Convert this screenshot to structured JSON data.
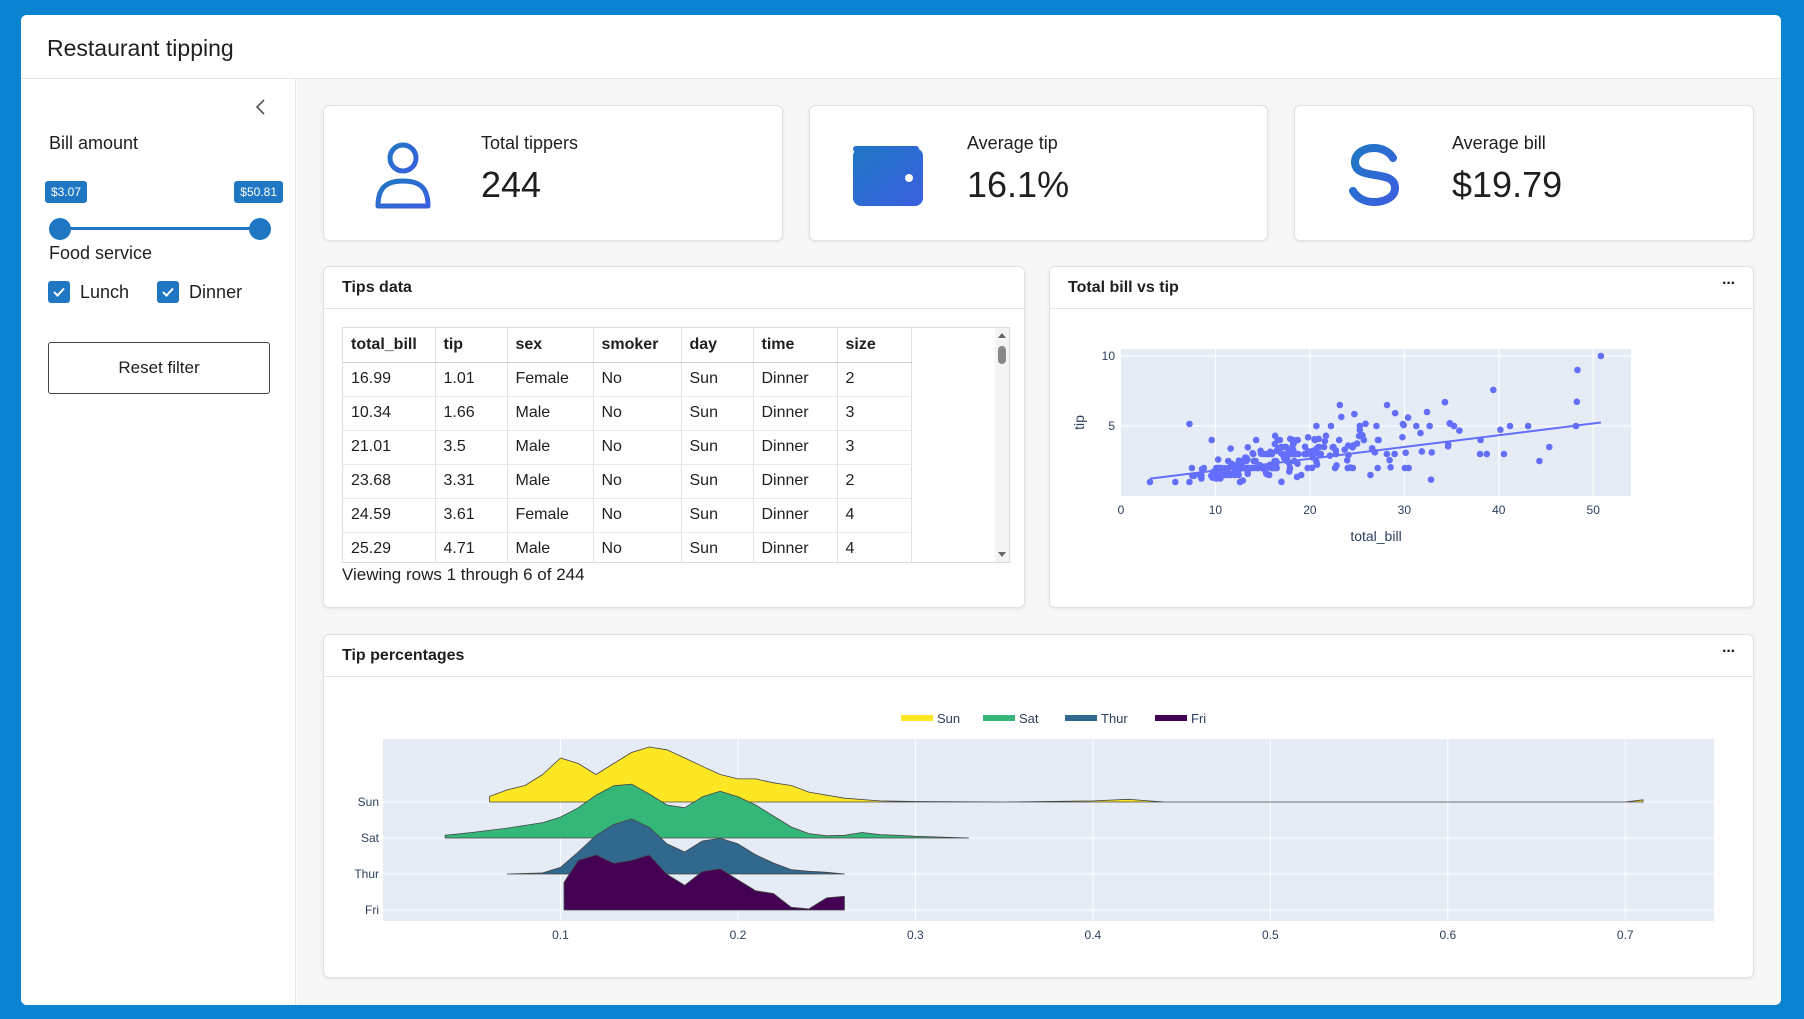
{
  "app": {
    "title": "Restaurant tipping"
  },
  "sidebar": {
    "bill_label": "Bill amount",
    "bill_min": "$3.07",
    "bill_max": "$50.81",
    "bill_range_fraction": [
      0,
      1
    ],
    "food_label": "Food service",
    "options": [
      {
        "label": "Lunch",
        "checked": true
      },
      {
        "label": "Dinner",
        "checked": true
      }
    ],
    "reset_label": "Reset filter"
  },
  "value_boxes": [
    {
      "label": "Total tippers",
      "value": "244",
      "icon": "user-icon"
    },
    {
      "label": "Average tip",
      "value": "16.1%",
      "icon": "wallet-icon"
    },
    {
      "label": "Average bill",
      "value": "$19.79",
      "icon": "dollar-icon"
    }
  ],
  "tips_card": {
    "title": "Tips data",
    "columns": [
      "total_bill",
      "tip",
      "sex",
      "smoker",
      "day",
      "time",
      "size"
    ],
    "rows": [
      [
        "16.99",
        "1.01",
        "Female",
        "No",
        "Sun",
        "Dinner",
        "2"
      ],
      [
        "10.34",
        "1.66",
        "Male",
        "No",
        "Sun",
        "Dinner",
        "3"
      ],
      [
        "21.01",
        "3.5",
        "Male",
        "No",
        "Sun",
        "Dinner",
        "3"
      ],
      [
        "23.68",
        "3.31",
        "Male",
        "No",
        "Sun",
        "Dinner",
        "2"
      ],
      [
        "24.59",
        "3.61",
        "Female",
        "No",
        "Sun",
        "Dinner",
        "4"
      ],
      [
        "25.29",
        "4.71",
        "Male",
        "No",
        "Sun",
        "Dinner",
        "4"
      ]
    ],
    "footer": "Viewing rows 1 through 6 of 244"
  },
  "scatter_card": {
    "title": "Total bill vs tip",
    "more": "···"
  },
  "ridge_card": {
    "title": "Tip percentages",
    "more": "···"
  },
  "colors": {
    "accent": "#1f77c4",
    "marker": "#636efa",
    "plot_bg": "#e5ecf6",
    "sun": "#fde725",
    "sat": "#35b779",
    "thur": "#31688e",
    "fri": "#440154"
  },
  "chart_data": [
    {
      "type": "scatter",
      "title": "",
      "xlabel": "total_bill",
      "ylabel": "tip",
      "xlim": [
        0,
        54
      ],
      "ylim": [
        0,
        10.5
      ],
      "xticks": [
        0,
        10,
        20,
        30,
        40,
        50
      ],
      "yticks": [
        5,
        10
      ],
      "grid": true,
      "points": [
        [
          16.99,
          1.01
        ],
        [
          10.34,
          1.66
        ],
        [
          21.01,
          3.5
        ],
        [
          23.68,
          3.31
        ],
        [
          24.59,
          3.61
        ],
        [
          25.29,
          4.71
        ],
        [
          8.77,
          2.0
        ],
        [
          26.88,
          3.12
        ],
        [
          15.04,
          1.96
        ],
        [
          14.78,
          3.23
        ],
        [
          10.27,
          1.71
        ],
        [
          35.26,
          5.0
        ],
        [
          15.42,
          1.57
        ],
        [
          18.43,
          3.0
        ],
        [
          14.83,
          3.02
        ],
        [
          21.58,
          3.92
        ],
        [
          10.33,
          1.67
        ],
        [
          16.29,
          3.71
        ],
        [
          16.97,
          3.5
        ],
        [
          20.65,
          3.35
        ],
        [
          17.92,
          4.08
        ],
        [
          20.29,
          2.75
        ],
        [
          15.77,
          2.23
        ],
        [
          39.42,
          7.58
        ],
        [
          19.82,
          3.18
        ],
        [
          17.81,
          2.34
        ],
        [
          13.37,
          2.0
        ],
        [
          12.69,
          2.0
        ],
        [
          21.7,
          4.3
        ],
        [
          19.65,
          3.0
        ],
        [
          9.55,
          1.45
        ],
        [
          18.35,
          2.5
        ],
        [
          15.06,
          3.0
        ],
        [
          20.69,
          2.45
        ],
        [
          17.78,
          3.27
        ],
        [
          24.06,
          3.6
        ],
        [
          16.31,
          2.0
        ],
        [
          16.93,
          3.07
        ],
        [
          18.69,
          2.31
        ],
        [
          31.27,
          5.0
        ],
        [
          16.04,
          2.24
        ],
        [
          17.46,
          2.54
        ],
        [
          13.94,
          3.06
        ],
        [
          9.68,
          1.32
        ],
        [
          30.4,
          5.6
        ],
        [
          18.29,
          3.0
        ],
        [
          22.23,
          5.0
        ],
        [
          32.4,
          6.0
        ],
        [
          28.55,
          2.05
        ],
        [
          18.04,
          3.0
        ],
        [
          12.54,
          2.5
        ],
        [
          10.29,
          2.6
        ],
        [
          34.81,
          5.2
        ],
        [
          9.94,
          1.56
        ],
        [
          25.56,
          4.34
        ],
        [
          19.49,
          3.51
        ],
        [
          38.01,
          3.0
        ],
        [
          26.41,
          1.5
        ],
        [
          11.24,
          1.76
        ],
        [
          48.27,
          6.73
        ],
        [
          20.29,
          3.21
        ],
        [
          13.81,
          2.0
        ],
        [
          11.02,
          1.98
        ],
        [
          18.29,
          3.76
        ],
        [
          17.59,
          2.64
        ],
        [
          20.08,
          3.15
        ],
        [
          16.45,
          2.47
        ],
        [
          3.07,
          1.0
        ],
        [
          20.23,
          2.01
        ],
        [
          15.01,
          2.09
        ],
        [
          12.02,
          1.97
        ],
        [
          17.07,
          3.0
        ],
        [
          26.86,
          3.14
        ],
        [
          25.28,
          5.0
        ],
        [
          14.73,
          2.2
        ],
        [
          10.51,
          1.25
        ],
        [
          17.92,
          3.08
        ],
        [
          27.2,
          4.0
        ],
        [
          22.76,
          3.0
        ],
        [
          17.29,
          2.71
        ],
        [
          19.44,
          3.0
        ],
        [
          16.66,
          3.4
        ],
        [
          10.07,
          1.83
        ],
        [
          32.68,
          5.0
        ],
        [
          15.98,
          2.03
        ],
        [
          34.83,
          5.17
        ],
        [
          13.03,
          2.0
        ],
        [
          18.28,
          4.0
        ],
        [
          24.71,
          5.85
        ],
        [
          21.16,
          3.0
        ],
        [
          28.97,
          3.0
        ],
        [
          22.49,
          3.5
        ],
        [
          5.75,
          1.0
        ],
        [
          16.32,
          4.3
        ],
        [
          22.75,
          3.25
        ],
        [
          40.17,
          4.73
        ],
        [
          27.28,
          4.0
        ],
        [
          12.03,
          1.5
        ],
        [
          21.01,
          3.0
        ],
        [
          12.46,
          1.5
        ],
        [
          11.35,
          2.5
        ],
        [
          15.38,
          3.0
        ],
        [
          44.3,
          2.5
        ],
        [
          22.42,
          3.48
        ],
        [
          20.92,
          4.08
        ],
        [
          15.36,
          1.64
        ],
        [
          20.49,
          4.06
        ],
        [
          25.21,
          4.29
        ],
        [
          18.24,
          3.76
        ],
        [
          14.31,
          4.0
        ],
        [
          14.0,
          3.0
        ],
        [
          7.25,
          1.0
        ],
        [
          38.07,
          4.0
        ],
        [
          23.95,
          2.55
        ],
        [
          25.71,
          4.0
        ],
        [
          17.31,
          3.5
        ],
        [
          29.93,
          5.07
        ],
        [
          10.65,
          1.5
        ],
        [
          12.43,
          1.8
        ],
        [
          24.08,
          2.92
        ],
        [
          11.69,
          2.31
        ],
        [
          13.42,
          1.68
        ],
        [
          14.26,
          2.5
        ],
        [
          15.95,
          2.0
        ],
        [
          12.48,
          2.52
        ],
        [
          29.8,
          4.2
        ],
        [
          8.52,
          1.48
        ],
        [
          14.52,
          2.0
        ],
        [
          11.38,
          2.0
        ],
        [
          22.82,
          2.18
        ],
        [
          19.08,
          1.5
        ],
        [
          20.27,
          2.83
        ],
        [
          11.17,
          1.5
        ],
        [
          12.26,
          2.0
        ],
        [
          18.26,
          3.25
        ],
        [
          8.51,
          1.25
        ],
        [
          10.33,
          2.0
        ],
        [
          14.15,
          2.0
        ],
        [
          16.0,
          2.0
        ],
        [
          13.16,
          2.75
        ],
        [
          17.47,
          3.5
        ],
        [
          34.3,
          6.7
        ],
        [
          41.19,
          5.0
        ],
        [
          27.05,
          5.0
        ],
        [
          16.43,
          2.3
        ],
        [
          8.35,
          1.5
        ],
        [
          18.64,
          1.36
        ],
        [
          11.87,
          1.63
        ],
        [
          9.78,
          1.73
        ],
        [
          7.51,
          2.0
        ],
        [
          14.07,
          2.5
        ],
        [
          13.13,
          2.0
        ],
        [
          17.26,
          2.74
        ],
        [
          24.55,
          2.0
        ],
        [
          19.77,
          2.0
        ],
        [
          29.85,
          5.14
        ],
        [
          48.17,
          5.0
        ],
        [
          25.0,
          3.75
        ],
        [
          13.39,
          2.61
        ],
        [
          16.49,
          2.0
        ],
        [
          21.5,
          3.5
        ],
        [
          12.66,
          2.5
        ],
        [
          16.21,
          2.0
        ],
        [
          13.81,
          2.0
        ],
        [
          17.51,
          3.0
        ],
        [
          24.52,
          3.48
        ],
        [
          20.76,
          2.24
        ],
        [
          31.71,
          4.5
        ],
        [
          10.59,
          1.61
        ],
        [
          10.63,
          2.0
        ],
        [
          50.81,
          10.0
        ],
        [
          15.81,
          3.16
        ],
        [
          7.25,
          5.15
        ],
        [
          31.85,
          3.18
        ],
        [
          16.82,
          4.0
        ],
        [
          32.9,
          3.11
        ],
        [
          17.89,
          2.0
        ],
        [
          14.48,
          2.0
        ],
        [
          34.63,
          3.55
        ],
        [
          34.65,
          3.68
        ],
        [
          23.33,
          5.65
        ],
        [
          45.35,
          3.5
        ],
        [
          23.17,
          6.5
        ],
        [
          40.55,
          3.0
        ],
        [
          20.69,
          5.0
        ],
        [
          20.9,
          3.5
        ],
        [
          30.46,
          2.0
        ],
        [
          18.15,
          3.5
        ],
        [
          23.1,
          4.0
        ],
        [
          15.69,
          1.5
        ],
        [
          19.81,
          4.19
        ],
        [
          28.44,
          2.56
        ],
        [
          15.48,
          2.02
        ],
        [
          16.58,
          4.0
        ],
        [
          7.56,
          1.44
        ],
        [
          10.34,
          2.0
        ],
        [
          43.11,
          5.0
        ],
        [
          13.0,
          2.0
        ],
        [
          13.51,
          2.0
        ],
        [
          18.71,
          4.0
        ],
        [
          12.74,
          2.01
        ],
        [
          16.4,
          2.5
        ],
        [
          20.53,
          4.0
        ],
        [
          16.47,
          3.23
        ],
        [
          26.59,
          3.41
        ],
        [
          38.73,
          3.0
        ],
        [
          24.27,
          2.03
        ],
        [
          12.76,
          2.23
        ],
        [
          30.06,
          2.0
        ],
        [
          25.89,
          5.16
        ],
        [
          48.33,
          9.0
        ],
        [
          13.27,
          2.5
        ],
        [
          28.17,
          6.5
        ],
        [
          12.9,
          1.1
        ],
        [
          28.15,
          3.0
        ],
        [
          11.59,
          1.5
        ],
        [
          7.74,
          1.44
        ],
        [
          30.14,
          3.09
        ],
        [
          12.16,
          2.2
        ],
        [
          13.42,
          3.48
        ],
        [
          8.58,
          1.92
        ],
        [
          15.98,
          3.0
        ],
        [
          13.42,
          1.58
        ],
        [
          16.27,
          2.5
        ],
        [
          10.09,
          2.0
        ],
        [
          20.45,
          3.0
        ],
        [
          13.28,
          2.72
        ],
        [
          22.12,
          2.88
        ],
        [
          24.01,
          2.0
        ],
        [
          15.69,
          3.0
        ],
        [
          11.61,
          3.39
        ],
        [
          10.77,
          1.47
        ],
        [
          15.53,
          3.0
        ],
        [
          10.07,
          1.25
        ],
        [
          12.6,
          1.0
        ],
        [
          32.83,
          1.17
        ],
        [
          35.83,
          4.67
        ],
        [
          29.03,
          5.92
        ],
        [
          27.18,
          2.0
        ],
        [
          22.67,
          2.0
        ],
        [
          17.82,
          1.75
        ],
        [
          18.78,
          3.0
        ],
        [
          9.6,
          4.0
        ],
        [
          34.3,
          6.7
        ]
      ],
      "trendline": {
        "x": [
          3.07,
          50.81
        ],
        "y": [
          1.24,
          5.25
        ]
      }
    },
    {
      "type": "area",
      "title": "",
      "xlim": [
        0.0,
        0.75
      ],
      "xticks": [
        0.1,
        0.2,
        0.3,
        0.4,
        0.5,
        0.6,
        0.7
      ],
      "categories": [
        "Sun",
        "Sat",
        "Thur",
        "Fri"
      ],
      "legend": "top-center",
      "series": [
        {
          "name": "Sun",
          "color": "#fde725",
          "x": [
            0.06,
            0.07,
            0.08,
            0.09,
            0.1,
            0.11,
            0.12,
            0.13,
            0.14,
            0.15,
            0.16,
            0.17,
            0.18,
            0.19,
            0.2,
            0.21,
            0.22,
            0.23,
            0.24,
            0.26,
            0.28,
            0.3,
            0.35,
            0.4,
            0.42,
            0.44,
            0.5,
            0.6,
            0.7,
            0.71
          ],
          "y": [
            0.1,
            0.22,
            0.3,
            0.5,
            0.8,
            0.7,
            0.5,
            0.7,
            0.9,
            1.0,
            0.95,
            0.8,
            0.65,
            0.5,
            0.42,
            0.42,
            0.35,
            0.3,
            0.18,
            0.07,
            0.02,
            0.01,
            0.0,
            0.02,
            0.05,
            0.0,
            0.0,
            0.0,
            0.0,
            0.04
          ]
        },
        {
          "name": "Sat",
          "color": "#35b779",
          "x": [
            0.035,
            0.05,
            0.07,
            0.09,
            0.1,
            0.11,
            0.12,
            0.13,
            0.14,
            0.15,
            0.16,
            0.17,
            0.18,
            0.19,
            0.2,
            0.21,
            0.22,
            0.23,
            0.24,
            0.25,
            0.26,
            0.27,
            0.28,
            0.29,
            0.3,
            0.33
          ],
          "y": [
            0.05,
            0.1,
            0.18,
            0.28,
            0.38,
            0.55,
            0.78,
            0.95,
            0.98,
            0.8,
            0.6,
            0.55,
            0.75,
            0.85,
            0.75,
            0.6,
            0.4,
            0.2,
            0.08,
            0.04,
            0.05,
            0.1,
            0.06,
            0.05,
            0.03,
            0.0
          ]
        },
        {
          "name": "Thur",
          "color": "#31688e",
          "x": [
            0.07,
            0.09,
            0.1,
            0.11,
            0.12,
            0.13,
            0.14,
            0.15,
            0.16,
            0.17,
            0.18,
            0.19,
            0.2,
            0.21,
            0.22,
            0.23,
            0.24,
            0.25,
            0.26
          ],
          "y": [
            0.0,
            0.02,
            0.12,
            0.4,
            0.7,
            0.9,
            1.0,
            0.85,
            0.55,
            0.4,
            0.6,
            0.65,
            0.55,
            0.35,
            0.2,
            0.08,
            0.05,
            0.03,
            0.0
          ]
        },
        {
          "name": "Fri",
          "color": "#440154",
          "x": [
            0.102,
            0.11,
            0.12,
            0.13,
            0.14,
            0.15,
            0.16,
            0.17,
            0.18,
            0.19,
            0.2,
            0.21,
            0.22,
            0.23,
            0.24,
            0.25,
            0.26
          ],
          "y": [
            0.5,
            0.9,
            1.0,
            0.85,
            0.9,
            1.0,
            0.65,
            0.45,
            0.7,
            0.75,
            0.55,
            0.35,
            0.3,
            0.05,
            0.02,
            0.22,
            0.25
          ]
        }
      ]
    }
  ]
}
